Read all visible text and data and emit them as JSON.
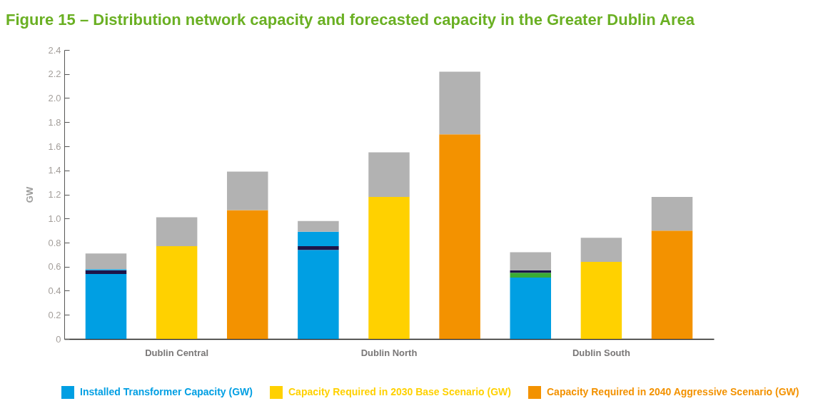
{
  "chart_data": {
    "type": "bar",
    "title": "Figure 15 – Distribution network capacity and forecasted capacity in the Greater Dublin Area",
    "ylabel": "GW",
    "categories": [
      null,
      "Dublin Central",
      null,
      null,
      "Dublin North",
      null,
      null,
      "Dublin South",
      null
    ],
    "series": [
      {
        "name": "Installed Transformer Capacity (GW)",
        "color": "#009fe3",
        "values": [
          0.54,
          null,
          null,
          0.74,
          null,
          null,
          0.51,
          null,
          null
        ]
      },
      {
        "color": "#3aaa35",
        "values": [
          null,
          null,
          null,
          null,
          null,
          null,
          0.04,
          null,
          null
        ]
      },
      {
        "color": "#1d1449",
        "values": [
          0.03,
          null,
          null,
          0.03,
          null,
          null,
          0.02,
          null,
          null
        ]
      },
      {
        "color": "#009fe3",
        "values": [
          0.01,
          null,
          null,
          0.12,
          null,
          null,
          null,
          null,
          null
        ]
      },
      {
        "name": "Capacity Required in 2030 Base Scenario (GW)",
        "color": "#ffd100",
        "values": [
          null,
          0.77,
          null,
          null,
          1.18,
          null,
          null,
          0.64,
          null
        ]
      },
      {
        "name": "Capacity Required in 2040 Aggressive Scenario (GW)",
        "color": "#f39200",
        "values": [
          null,
          null,
          1.07,
          null,
          null,
          1.7,
          null,
          null,
          0.9
        ]
      },
      {
        "color": "#b2b2b2",
        "values": [
          0.13,
          0.24,
          0.32,
          0.09,
          0.37,
          0.52,
          0.15,
          0.2,
          0.28
        ]
      }
    ],
    "stacked": true,
    "legend": "bottom",
    "ylim": [
      0,
      2.4
    ],
    "yticks": [
      0,
      0.2,
      0.4,
      0.6,
      0.8,
      {
        "value": 1,
        "label": "1.0"
      },
      1.2,
      1.4,
      1.6,
      1.8,
      {
        "value": 2,
        "label": "2.0"
      },
      2.2,
      2.4
    ]
  }
}
